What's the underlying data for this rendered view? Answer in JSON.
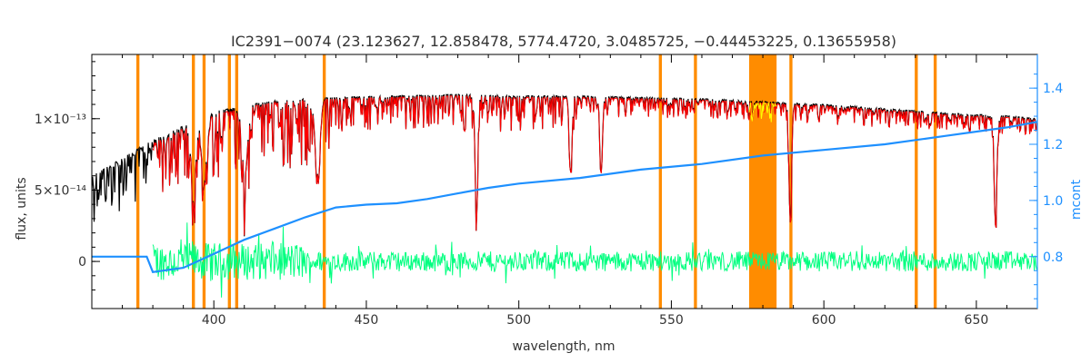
{
  "chart_data": {
    "type": "line",
    "title": "IC2391−0074    (23.123627, 12.858478, 5774.4720, 3.0485725, −0.44453225, 0.13655958)",
    "xlabel": "wavelength, nm",
    "ylabel": "flux, units",
    "y2label": "mcont",
    "xlim": [
      360,
      670
    ],
    "ylim": [
      -3.3e-14,
      1.45e-13
    ],
    "y2lim": [
      0.615,
      1.52
    ],
    "x_ticks": [
      400,
      450,
      500,
      550,
      600,
      650
    ],
    "x_tick_labels": [
      "400",
      "450",
      "500",
      "550",
      "600",
      "650"
    ],
    "y_ticks": [
      0,
      5e-14,
      1e-13
    ],
    "y_tick_labels": [
      "0",
      "5×10⁻¹⁴",
      "1×10⁻¹³"
    ],
    "y2_ticks": [
      0.8,
      1.0,
      1.2,
      1.4
    ],
    "y2_tick_labels": [
      "0.8",
      "1.0",
      "1.2",
      "1.4"
    ],
    "masked_ranges_nm": [
      [
        374.6,
        375.6
      ],
      [
        392.8,
        393.8
      ],
      [
        396.3,
        397.3
      ],
      [
        404.6,
        405.6
      ],
      [
        407.0,
        408.0
      ],
      [
        435.7,
        436.7
      ],
      [
        545.9,
        546.9
      ],
      [
        557.4,
        558.4
      ],
      [
        575.5,
        584.5
      ],
      [
        588.7,
        589.7
      ],
      [
        629.8,
        630.8
      ],
      [
        636.0,
        637.0
      ]
    ],
    "absorption_lines_nm": [
      393.4,
      396.8,
      410.2,
      434.0,
      486.1,
      516.9,
      527.0,
      589.0,
      656.3
    ],
    "series": [
      {
        "name": "",
        "color": "#000000",
        "role": "observed flux",
        "x": [
          360,
          380,
          400,
          420,
          440,
          460,
          480,
          500,
          520,
          540,
          560,
          580,
          600,
          620,
          640,
          660,
          670
        ],
        "y": [
          6e-14,
          8.5e-14,
          1.05e-13,
          1.13e-13,
          1.15e-13,
          1.16e-13,
          1.17e-13,
          1.16e-13,
          1.16e-13,
          1.15e-13,
          1.14e-13,
          1.12e-13,
          1.1e-13,
          1.07e-13,
          1.04e-13,
          1.02e-13,
          1e-13
        ]
      },
      {
        "name": "",
        "color": "#FF0000",
        "role": "model fit",
        "x": [
          380,
          400,
          420,
          440,
          460,
          480,
          500,
          520,
          540,
          560,
          580,
          600,
          620,
          640,
          660,
          670
        ],
        "y": [
          8.3e-14,
          1.03e-13,
          1.12e-13,
          1.14e-13,
          1.15e-13,
          1.16e-13,
          1.15e-13,
          1.15e-13,
          1.14e-13,
          1.13e-13,
          1.11e-13,
          1.09e-13,
          1.06e-13,
          1.03e-13,
          1.01e-13,
          9.9e-14
        ]
      },
      {
        "name": "",
        "color": "#00FF7F",
        "role": "residuals",
        "x": [
          380,
          670
        ],
        "y": [
          0,
          0
        ]
      },
      {
        "name": "",
        "color": "#1E90FF",
        "role": "mcont (right axis)",
        "x": [
          360,
          378,
          380,
          390,
          400,
          410,
          420,
          430,
          440,
          450,
          460,
          470,
          480,
          490,
          500,
          520,
          540,
          560,
          580,
          600,
          620,
          640,
          660,
          670
        ],
        "y": [
          0.8,
          0.8,
          0.745,
          0.76,
          0.81,
          0.86,
          0.9,
          0.94,
          0.975,
          0.985,
          0.99,
          1.005,
          1.025,
          1.045,
          1.06,
          1.08,
          1.11,
          1.13,
          1.16,
          1.18,
          1.2,
          1.23,
          1.26,
          1.28
        ]
      }
    ],
    "mask_color": "#FF8C00",
    "masked_model_color": "#FFFF00"
  }
}
